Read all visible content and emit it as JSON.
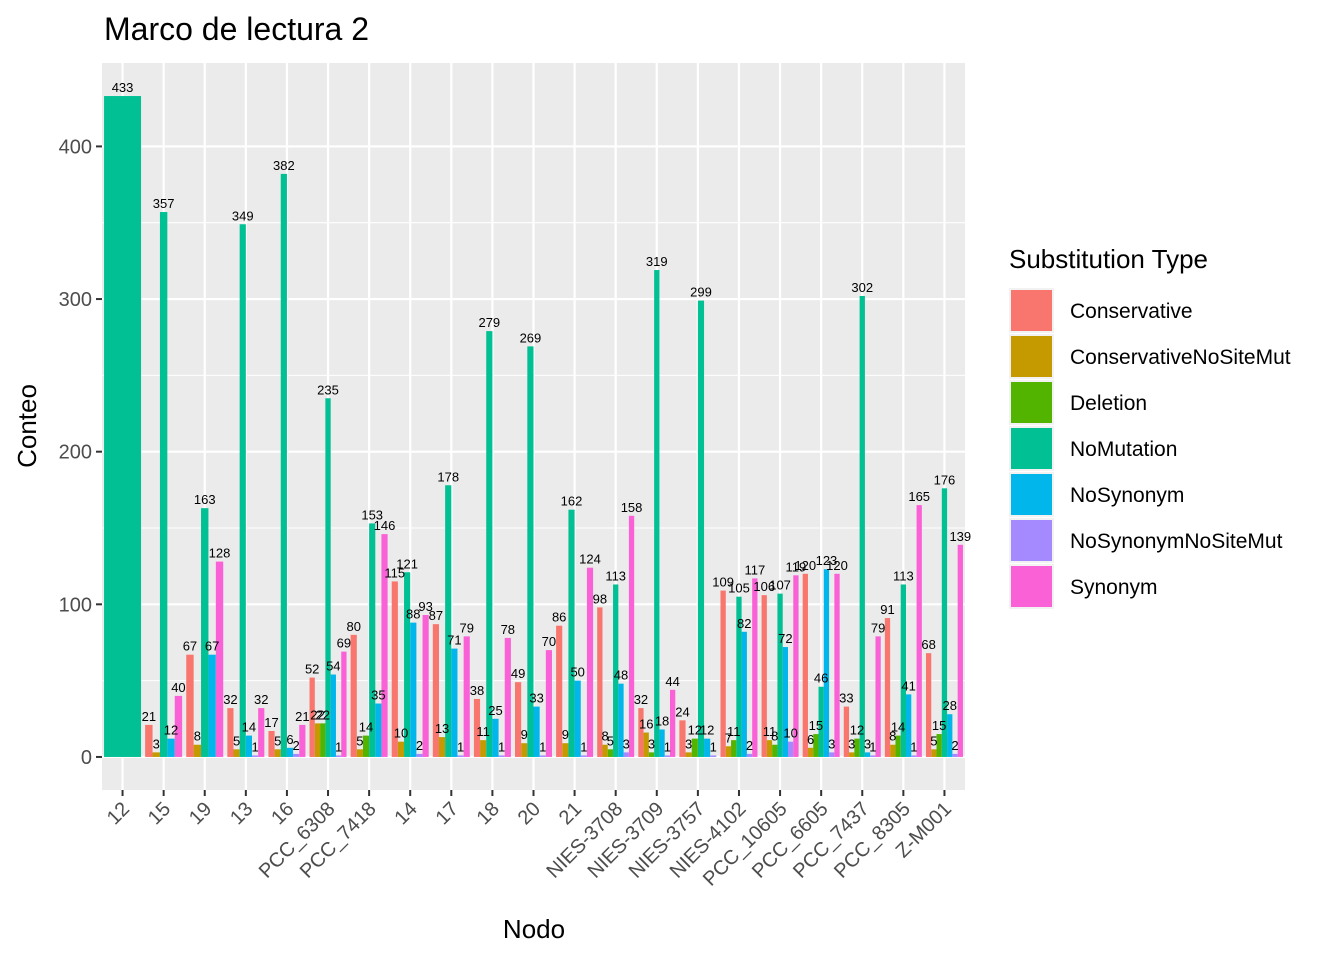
{
  "chart_data": {
    "type": "bar",
    "title": "Marco de lectura 2",
    "xlabel": "Nodo",
    "ylabel": "Conteo",
    "ylim": [
      -21.65,
      454.65
    ],
    "yticks": [
      0,
      100,
      200,
      300,
      400
    ],
    "grid": true,
    "legend_position": "right",
    "legend_title": "Substitution Type",
    "categories": [
      "12",
      "15",
      "19",
      "13",
      "16",
      "PCC_6308",
      "PCC_7418",
      "14",
      "17",
      "18",
      "20",
      "21",
      "NIES-3708",
      "NIES-3709",
      "NIES-3757",
      "NIES-4102",
      "PCC_10605",
      "PCC_6605",
      "PCC_7437",
      "PCC_8305",
      "Z-M001"
    ],
    "series": [
      {
        "name": "Conservative",
        "color": "#F8766D",
        "values": [
          null,
          21,
          67,
          32,
          17,
          52,
          80,
          115,
          87,
          38,
          49,
          86,
          98,
          32,
          24,
          109,
          106,
          120,
          33,
          91,
          68
        ]
      },
      {
        "name": "ConservativeNoSiteMut",
        "color": "#C49A00",
        "values": [
          null,
          3,
          8,
          5,
          5,
          22,
          5,
          10,
          13,
          11,
          9,
          9,
          8,
          16,
          3,
          7,
          11,
          6,
          3,
          8,
          5
        ]
      },
      {
        "name": "Deletion",
        "color": "#53B400",
        "values": [
          null,
          null,
          null,
          null,
          null,
          22,
          14,
          null,
          null,
          null,
          null,
          null,
          5,
          3,
          12,
          11,
          8,
          15,
          12,
          14,
          15
        ]
      },
      {
        "name": "NoMutation",
        "color": "#00C094",
        "values": [
          433,
          357,
          163,
          349,
          382,
          235,
          153,
          121,
          178,
          279,
          269,
          162,
          113,
          319,
          299,
          105,
          107,
          46,
          302,
          113,
          176
        ]
      },
      {
        "name": "NoSynonym",
        "color": "#00B6EB",
        "values": [
          null,
          12,
          67,
          14,
          6,
          54,
          35,
          88,
          71,
          25,
          33,
          50,
          48,
          18,
          12,
          82,
          72,
          123,
          3,
          41,
          28
        ]
      },
      {
        "name": "NoSynonymNoSiteMut",
        "color": "#A58AFF",
        "values": [
          null,
          null,
          null,
          1,
          2,
          1,
          null,
          2,
          1,
          1,
          1,
          1,
          3,
          1,
          1,
          2,
          10,
          3,
          1,
          1,
          2
        ]
      },
      {
        "name": "Synonym",
        "color": "#FB61D7",
        "values": [
          null,
          40,
          128,
          32,
          21,
          69,
          146,
          93,
          79,
          78,
          70,
          124,
          158,
          44,
          null,
          117,
          119,
          120,
          79,
          165,
          139
        ]
      }
    ]
  }
}
